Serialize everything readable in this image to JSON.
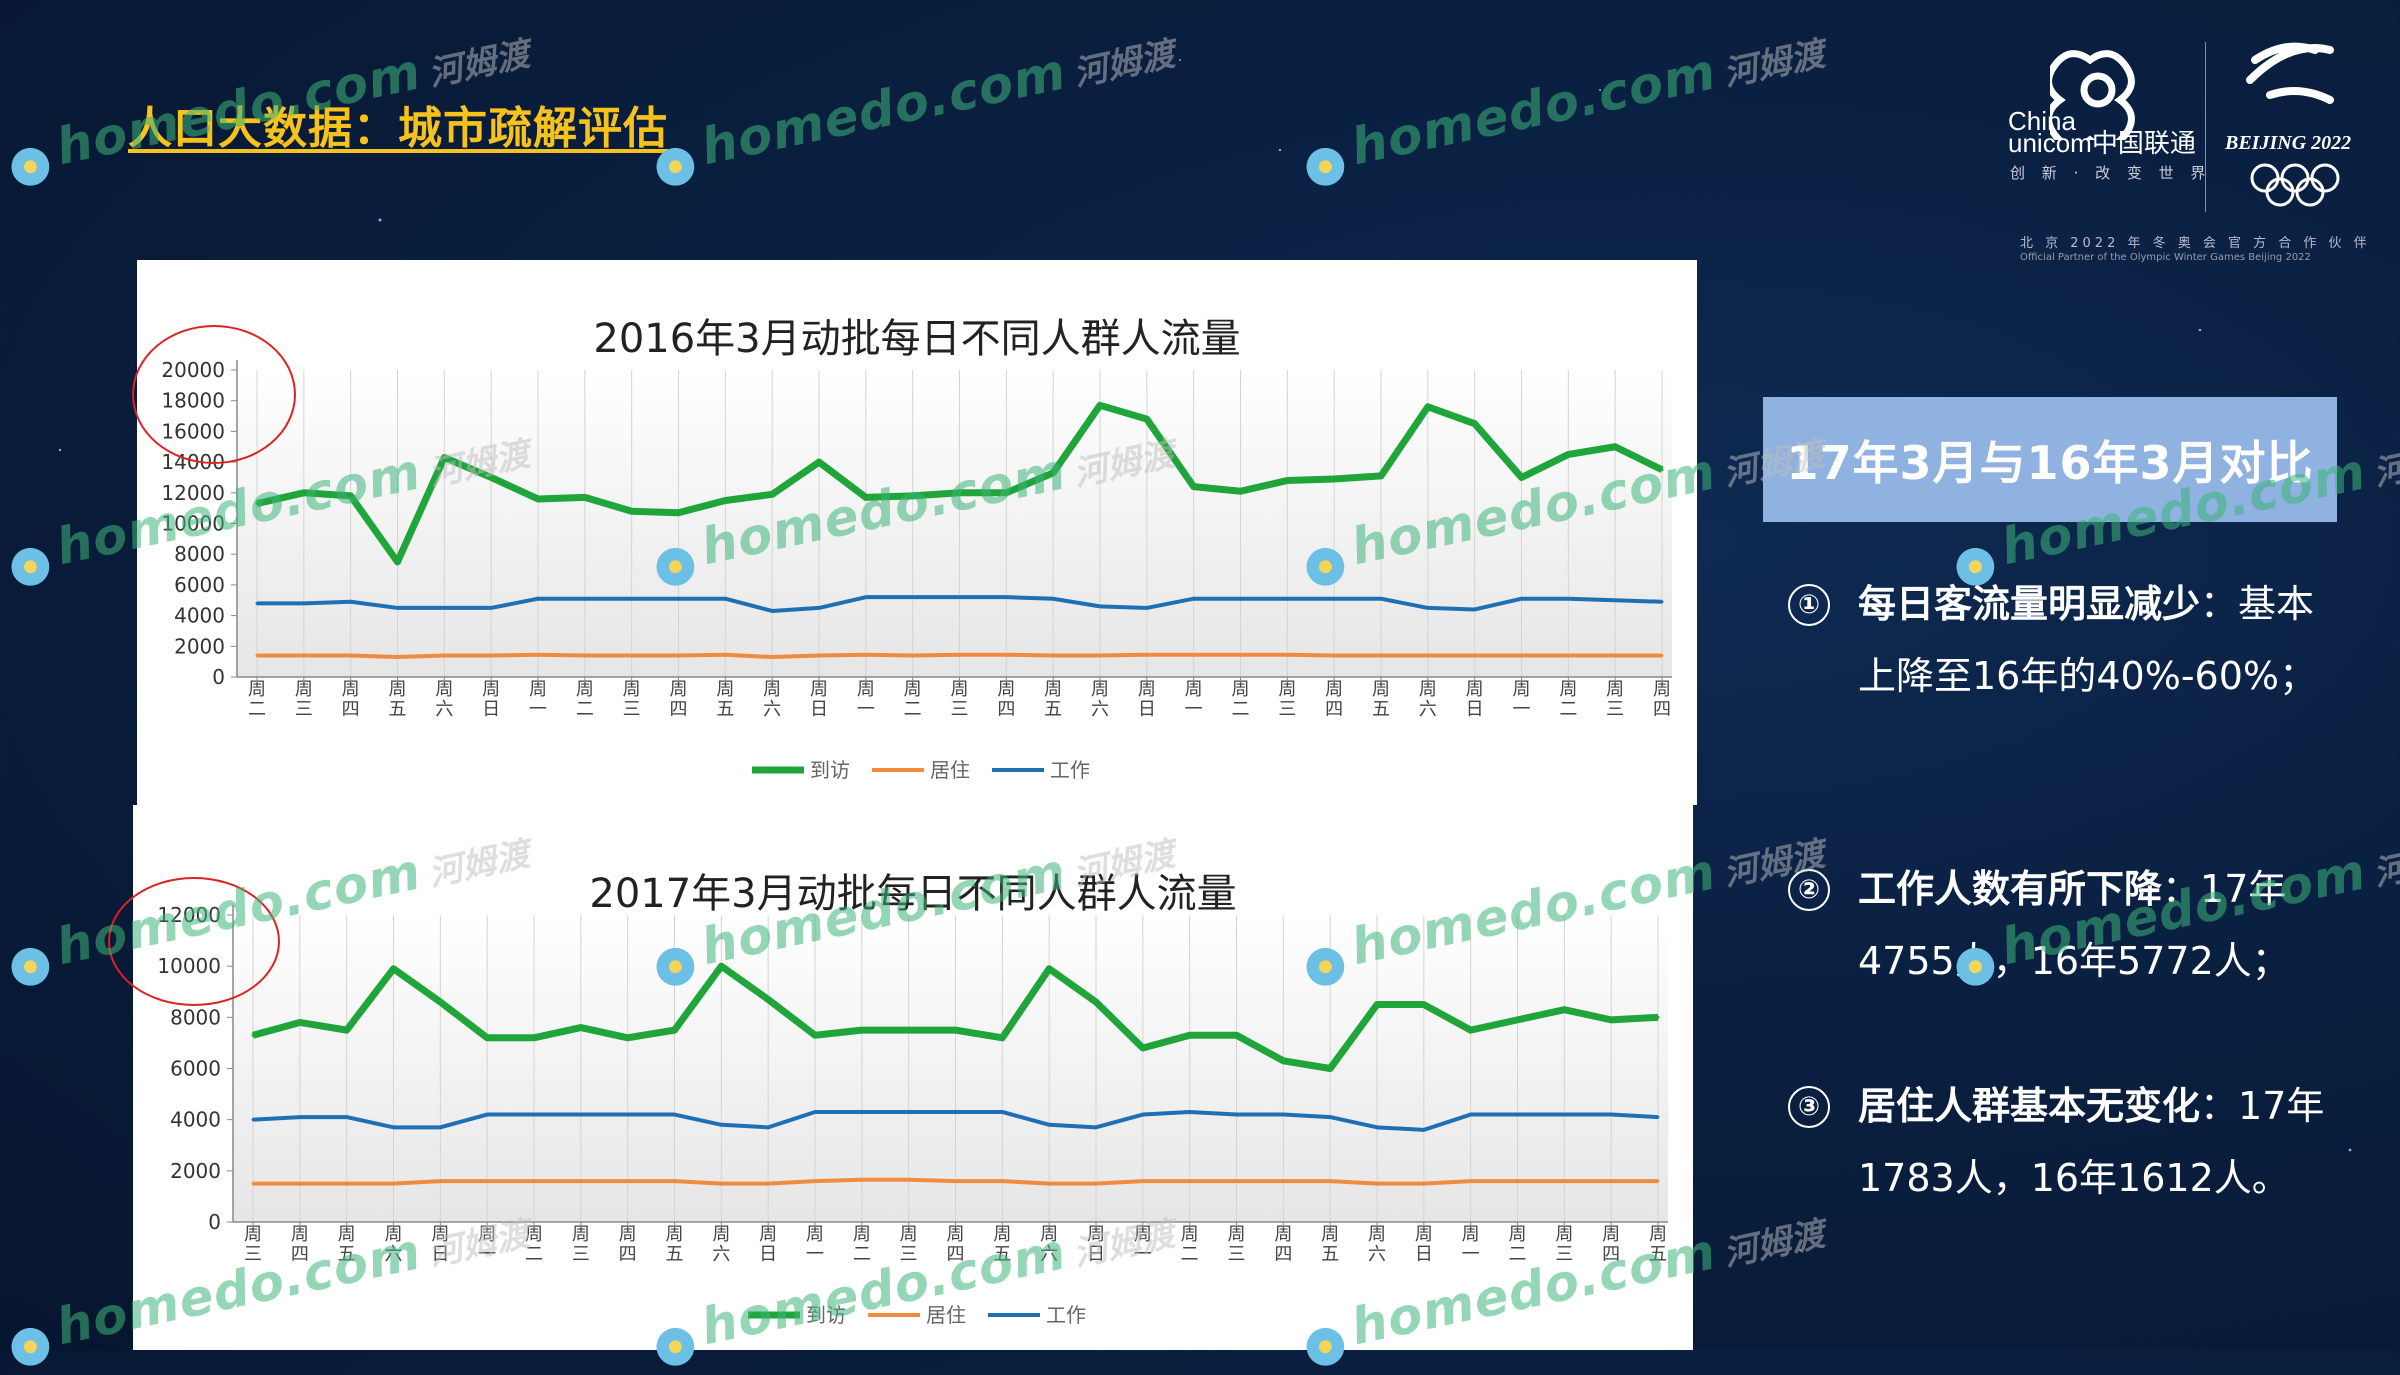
{
  "page_title": "人口大数据：城市疏解评估",
  "logo": {
    "cu_en_line1": "China",
    "cu_en_line2": "unicom中国联通",
    "cu_slogan": "创 新 · 改 变 世 界",
    "bj": "BEIJING 2022",
    "partner_cn": "北 京 2022 年 冬 奥 会 官 方 合 作 伙 伴",
    "partner_en": "Official Partner of the Olympic Winter Games Beijing 2022"
  },
  "watermark": {
    "site": "homedo.com",
    "cn": "河姆渡"
  },
  "colors": {
    "visit": "#1fa53a",
    "resident": "#f08a3c",
    "work": "#1f6fb5",
    "accent": "#f7c21a",
    "header_bg": "#8fb2e0"
  },
  "compare": {
    "header": "17年3月与16年3月对比",
    "points": [
      {
        "num": "①",
        "bold": "每日客流量明显减少",
        "text": "：基本上降至16年的40%-60%；"
      },
      {
        "num": "②",
        "bold": "工作人数有所下降",
        "text": "：17年4755人，16年5772人；"
      },
      {
        "num": "③",
        "bold": "居住人群基本无变化",
        "text": "：17年1783人，16年1612人。"
      }
    ]
  },
  "chart_data": [
    {
      "type": "line",
      "title": "2016年3月动批每日不同人群人流量",
      "ylim": [
        0,
        20000
      ],
      "yticks": [
        0,
        2000,
        4000,
        6000,
        8000,
        10000,
        12000,
        14000,
        16000,
        18000,
        20000
      ],
      "categories": [
        "周二",
        "周三",
        "周四",
        "周五",
        "周六",
        "周日",
        "周一",
        "周二",
        "周三",
        "周四",
        "周五",
        "周六",
        "周日",
        "周一",
        "周二",
        "周三",
        "周四",
        "周五",
        "周六",
        "周日",
        "周一",
        "周二",
        "周三",
        "周四",
        "周五",
        "周六",
        "周日",
        "周一",
        "周二",
        "周三",
        "周四"
      ],
      "series": [
        {
          "name": "到访",
          "values": [
            11300,
            12000,
            11800,
            7500,
            14300,
            13000,
            11600,
            11700,
            10800,
            10700,
            11500,
            11900,
            14000,
            11700,
            11800,
            12000,
            12000,
            13300,
            17700,
            16800,
            12400,
            12100,
            12800,
            12900,
            13100,
            17600,
            16500,
            13000,
            14500,
            15000,
            13500
          ]
        },
        {
          "name": "居住",
          "values": [
            1400,
            1400,
            1400,
            1300,
            1400,
            1400,
            1450,
            1400,
            1400,
            1400,
            1450,
            1300,
            1400,
            1450,
            1400,
            1450,
            1450,
            1400,
            1400,
            1450,
            1450,
            1450,
            1450,
            1400,
            1400,
            1400,
            1400,
            1400,
            1400,
            1400,
            1400
          ]
        },
        {
          "name": "工作",
          "values": [
            4800,
            4800,
            4900,
            4500,
            4500,
            4500,
            5100,
            5100,
            5100,
            5100,
            5100,
            4300,
            4500,
            5200,
            5200,
            5200,
            5200,
            5100,
            4600,
            4500,
            5100,
            5100,
            5100,
            5100,
            5100,
            4500,
            4400,
            5100,
            5100,
            5000,
            4900
          ]
        }
      ]
    },
    {
      "type": "line",
      "title": "2017年3月动批每日不同人群人流量",
      "ylim": [
        0,
        12000
      ],
      "yticks": [
        0,
        2000,
        4000,
        6000,
        8000,
        10000,
        12000
      ],
      "categories": [
        "周三",
        "周四",
        "周五",
        "周六",
        "周日",
        "周一",
        "周二",
        "周三",
        "周四",
        "周五",
        "周六",
        "周日",
        "周一",
        "周二",
        "周三",
        "周四",
        "周五",
        "周六",
        "周日",
        "周一",
        "周二",
        "周三",
        "周四",
        "周五",
        "周六",
        "周日",
        "周一",
        "周二",
        "周三",
        "周四",
        "周五"
      ],
      "series": [
        {
          "name": "到访",
          "values": [
            7300,
            7800,
            7500,
            9900,
            8600,
            7200,
            7200,
            7600,
            7200,
            7500,
            10000,
            8700,
            7300,
            7500,
            7500,
            7500,
            7200,
            9900,
            8600,
            6800,
            7300,
            7300,
            6300,
            6000,
            8500,
            8500,
            7500,
            7900,
            8300,
            7900,
            8000
          ]
        },
        {
          "name": "居住",
          "values": [
            1500,
            1500,
            1500,
            1500,
            1600,
            1600,
            1600,
            1600,
            1600,
            1600,
            1500,
            1500,
            1600,
            1650,
            1650,
            1600,
            1600,
            1500,
            1500,
            1600,
            1600,
            1600,
            1600,
            1600,
            1500,
            1500,
            1600,
            1600,
            1600,
            1600,
            1600
          ]
        },
        {
          "name": "工作",
          "values": [
            4000,
            4100,
            4100,
            3700,
            3700,
            4200,
            4200,
            4200,
            4200,
            4200,
            3800,
            3700,
            4300,
            4300,
            4300,
            4300,
            4300,
            3800,
            3700,
            4200,
            4300,
            4200,
            4200,
            4100,
            3700,
            3600,
            4200,
            4200,
            4200,
            4200,
            4100
          ]
        }
      ]
    }
  ]
}
